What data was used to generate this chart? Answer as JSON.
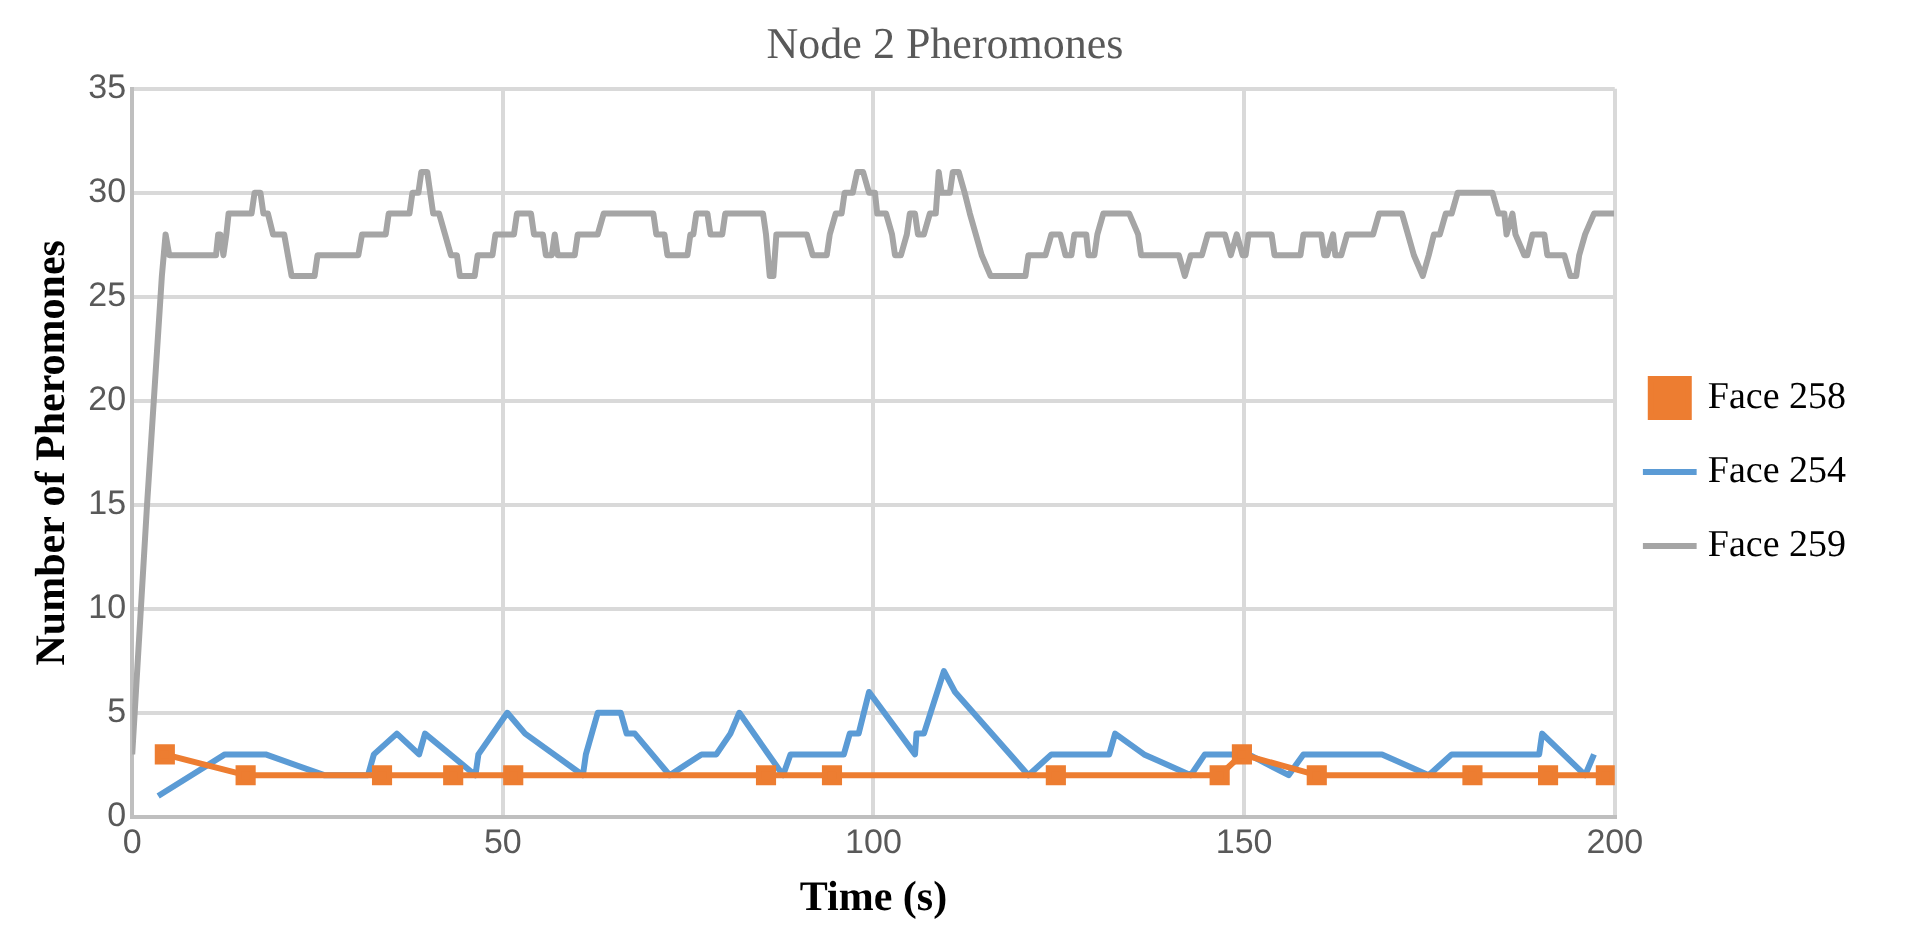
{
  "chart_data": {
    "type": "line",
    "title": "Node 2 Pheromones",
    "xlabel": "Time (s)",
    "ylabel": "Number of Pheromones",
    "xlim": [
      0,
      200
    ],
    "xticks": [
      0,
      50,
      100,
      150,
      200
    ],
    "ylim": [
      0,
      35
    ],
    "yticks": [
      0,
      5,
      10,
      15,
      20,
      25,
      30,
      35
    ],
    "grid": true,
    "legend": "right",
    "line_style": "solid",
    "series": [
      {
        "name": "Face 258",
        "color": "#ed7d31",
        "marker": "square",
        "x": [
          4.4,
          15.3,
          33.7,
          43.3,
          51.4,
          85.5,
          94.4,
          124.6,
          146.7,
          149.7,
          159.8,
          180.8,
          191,
          198.8
        ],
        "values": [
          3,
          2,
          2,
          2,
          2,
          2,
          2,
          2,
          2,
          3,
          2,
          2,
          2,
          2
        ]
      },
      {
        "name": "Face 254",
        "color": "#5b9bd5",
        "marker": "none",
        "x": [
          3.5,
          12.5,
          18,
          25.9,
          31.8,
          32.6,
          35.7,
          38.7,
          39.5,
          46.3,
          46.7,
          50.6,
          53,
          60.8,
          61.2,
          62.8,
          65.9,
          66.7,
          67.8,
          72.5,
          76.8,
          78.8,
          80.7,
          81.9,
          87.8,
          88.8,
          96,
          96.8,
          98,
          99.4,
          105.6,
          105.8,
          106.8,
          109.5,
          111,
          120.9,
          124,
          131.8,
          132.6,
          136.5,
          142.8,
          144.7,
          150.6,
          156,
          158,
          168.6,
          174.9,
          178,
          189.8,
          190.2,
          196,
          197.2
        ],
        "values": [
          1,
          3,
          3,
          2,
          2,
          3,
          4,
          3,
          4,
          2,
          3,
          5,
          4,
          2,
          3,
          5,
          5,
          4,
          4,
          2,
          3,
          3,
          4,
          5,
          2,
          3,
          3,
          4,
          4,
          6,
          3,
          4,
          4,
          7,
          6,
          2,
          3,
          3,
          4,
          3,
          2,
          3,
          3,
          2,
          3,
          3,
          2,
          3,
          3,
          4,
          2,
          3
        ]
      },
      {
        "name": "Face 259",
        "color": "#a5a5a5",
        "marker": "none",
        "x": [
          0,
          2,
          4,
          4.5,
          5,
          11.3,
          11.6,
          11.9,
          12.3,
          12.7,
          13,
          16.1,
          16.5,
          17.3,
          17.7,
          18.3,
          19,
          20.5,
          21,
          21.5,
          24.6,
          25,
          30.5,
          31,
          34.2,
          34.6,
          37.4,
          37.8,
          38.6,
          39,
          39.8,
          40.2,
          40.6,
          41.4,
          42.2,
          43,
          43.8,
          44.2,
          46.2,
          46.6,
          48.6,
          49,
          51.5,
          51.9,
          53.8,
          54.2,
          55.4,
          55.8,
          56.6,
          57,
          57.4,
          59.7,
          60.1,
          62.8,
          63.6,
          70.3,
          70.7,
          71.8,
          72.2,
          74.9,
          75.3,
          75.7,
          76.1,
          77.6,
          78,
          79.6,
          80,
          85.1,
          85.5,
          86,
          86.5,
          86.9,
          91,
          91.8,
          93.7,
          94.1,
          94.9,
          95.7,
          96.1,
          97.2,
          97.8,
          98.6,
          99.4,
          100.2,
          100.5,
          101.7,
          102.5,
          102.9,
          103.7,
          104.5,
          104.9,
          105.6,
          106,
          106.8,
          107.6,
          108.4,
          108.8,
          109.2,
          110.3,
          110.7,
          111.5,
          112.3,
          113,
          113.8,
          114.6,
          115.8,
          120.5,
          120.9,
          123.2,
          124,
          125.2,
          125.9,
          126.7,
          127.1,
          128.7,
          129,
          129.8,
          130.2,
          131,
          134.5,
          135.7,
          136.1,
          141.2,
          142,
          142.8,
          144.3,
          145.1,
          147.4,
          148.2,
          149,
          149.8,
          150.2,
          150.6,
          153.7,
          154.1,
          157.6,
          158,
          160.4,
          160.8,
          161.2,
          162,
          162.3,
          163.1,
          163.9,
          167.4,
          168.2,
          171.3,
          172.1,
          172.9,
          174.1,
          174.9,
          175.6,
          176.4,
          177.2,
          178,
          178.8,
          183.5,
          184.3,
          185.1,
          185.4,
          186.2,
          186.6,
          187.8,
          188.2,
          188.9,
          190.5,
          190.9,
          193.2,
          194,
          194.8,
          195.2,
          196,
          197.2,
          199.9
        ],
        "values": [
          3,
          15,
          26,
          28,
          27,
          27,
          28,
          28,
          27,
          28,
          29,
          29,
          30,
          30,
          29,
          29,
          28,
          28,
          27,
          26,
          26,
          27,
          27,
          28,
          28,
          29,
          29,
          30,
          30,
          31,
          31,
          30,
          29,
          29,
          28,
          27,
          27,
          26,
          26,
          27,
          27,
          28,
          28,
          29,
          29,
          28,
          28,
          27,
          27,
          28,
          27,
          27,
          28,
          28,
          29,
          29,
          28,
          28,
          27,
          27,
          28,
          28,
          29,
          29,
          28,
          28,
          29,
          29,
          28,
          26,
          26,
          28,
          28,
          27,
          27,
          28,
          29,
          29,
          30,
          30,
          31,
          31,
          30,
          30,
          29,
          29,
          28,
          27,
          27,
          28,
          29,
          29,
          28,
          28,
          29,
          29,
          31,
          30,
          30,
          31,
          31,
          30,
          29,
          28,
          27,
          26,
          26,
          27,
          27,
          28,
          28,
          27,
          27,
          28,
          28,
          27,
          27,
          28,
          29,
          29,
          28,
          27,
          27,
          26,
          27,
          27,
          28,
          28,
          27,
          28,
          27,
          27,
          28,
          28,
          27,
          27,
          28,
          28,
          27,
          27,
          28,
          27,
          27,
          28,
          28,
          29,
          29,
          28,
          27,
          26,
          27,
          28,
          28,
          29,
          29,
          30,
          30,
          29,
          29,
          28,
          29,
          28,
          27,
          27,
          28,
          28,
          27,
          27,
          26,
          26,
          27,
          28,
          29,
          29
        ]
      }
    ]
  }
}
